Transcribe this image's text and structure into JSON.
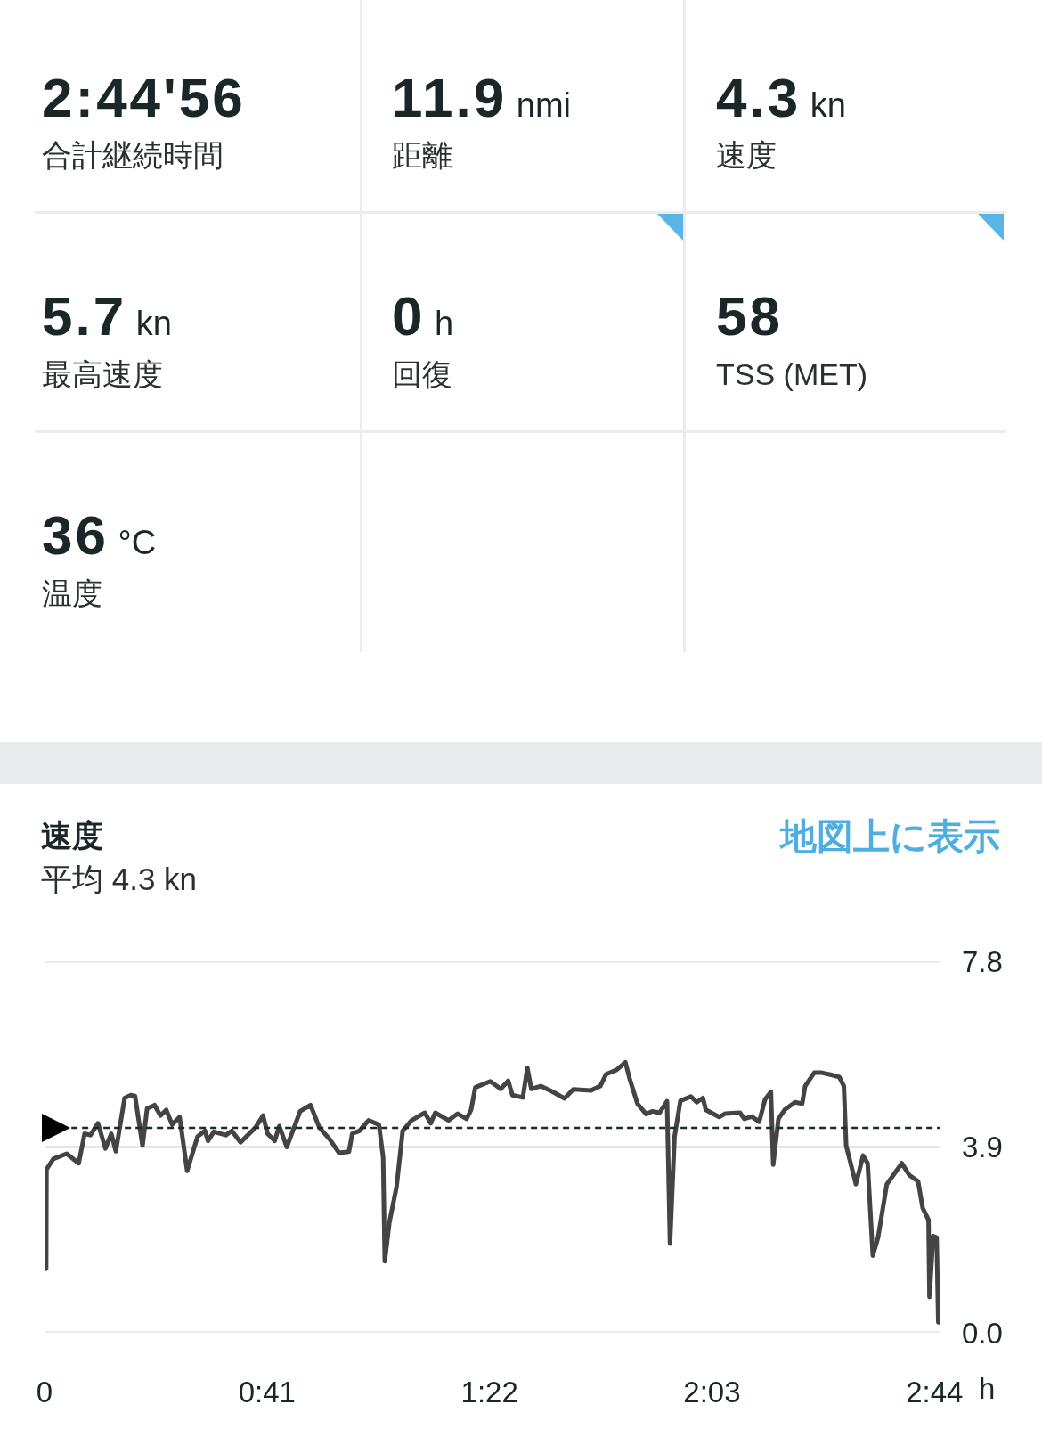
{
  "chart_data": [
    {
      "type": "other",
      "annotations": [
        "2:44'56",
        "合計継続時間",
        "11.9 nmi",
        "距離",
        "4.3 kn",
        "速度",
        "5.7 kn",
        "最高速度",
        "0 h",
        "回復",
        "58",
        "TSS (MET)",
        "36 °C",
        "温度"
      ]
    },
    {
      "type": "line",
      "title": "速度",
      "subtitle": "平均 4.3 kn",
      "annotations": [
        "地図上に表示"
      ],
      "xlabel": "h",
      "x": [
        0.005,
        0.006,
        0.027,
        0.068,
        0.105,
        0.123,
        0.141,
        0.164,
        0.187,
        0.205,
        0.219,
        0.246,
        0.265,
        0.278,
        0.301,
        0.315,
        0.338,
        0.356,
        0.374,
        0.392,
        0.415,
        0.438,
        0.47,
        0.493,
        0.502,
        0.52,
        0.557,
        0.575,
        0.602,
        0.648,
        0.671,
        0.685,
        0.707,
        0.721,
        0.744,
        0.785,
        0.817,
        0.844,
        0.876,
        0.904,
        0.935,
        0.945,
        0.967,
        0.995,
        1.027,
        1.04,
        1.045,
        1.059,
        1.081,
        1.1,
        1.127,
        1.168,
        1.186,
        1.2,
        1.241,
        1.269,
        1.296,
        1.31,
        1.323,
        1.369,
        1.401,
        1.424,
        1.437,
        1.469,
        1.483,
        1.495,
        1.524,
        1.561,
        1.597,
        1.624,
        1.679,
        1.707,
        1.725,
        1.757,
        1.784,
        1.798,
        1.821,
        1.848,
        1.866,
        1.889,
        1.912,
        1.921,
        1.935,
        1.953,
        1.985,
        2.003,
        2.022,
        2.031,
        2.072,
        2.09,
        2.136,
        2.149,
        2.172,
        2.195,
        2.213,
        2.231,
        2.238,
        2.254,
        2.273,
        2.305,
        2.327,
        2.336,
        2.364,
        2.387,
        2.414,
        2.441,
        2.455,
        2.462,
        2.492,
        2.514,
        2.528,
        2.544,
        2.56,
        2.587,
        2.61,
        2.633,
        2.656,
        2.683,
        2.697,
        2.715,
        2.718,
        2.729,
        2.74,
        2.745
      ],
      "series": [
        {
          "color": "#444444",
          "values": [
            1.34,
            3.43,
            3.65,
            3.76,
            3.56,
            4.18,
            4.15,
            4.4,
            3.87,
            4.18,
            3.81,
            4.93,
            4.99,
            4.97,
            3.93,
            4.71,
            4.78,
            4.56,
            4.68,
            4.37,
            4.53,
            3.4,
            4.12,
            4.24,
            4.03,
            4.22,
            4.15,
            4.24,
            4.0,
            4.31,
            4.56,
            4.18,
            4.03,
            4.34,
            3.9,
            4.65,
            4.78,
            4.31,
            4.06,
            3.78,
            3.8,
            4.18,
            4.24,
            4.46,
            4.37,
            3.68,
            1.5,
            2.31,
            3.06,
            4.24,
            4.46,
            4.62,
            4.4,
            4.62,
            4.46,
            4.6,
            4.49,
            4.68,
            5.15,
            5.28,
            5.12,
            5.29,
            4.99,
            4.94,
            5.56,
            5.12,
            5.18,
            5.06,
            4.92,
            5.11,
            5.09,
            5.18,
            5.43,
            5.52,
            5.68,
            5.31,
            4.81,
            4.59,
            4.65,
            4.62,
            4.86,
            1.87,
            4.12,
            4.87,
            4.96,
            4.84,
            4.93,
            4.68,
            4.53,
            4.6,
            4.62,
            4.49,
            4.54,
            4.43,
            4.9,
            5.06,
            3.53,
            4.49,
            4.68,
            4.84,
            4.81,
            5.18,
            5.46,
            5.46,
            5.42,
            5.37,
            5.18,
            3.93,
            3.12,
            3.72,
            3.56,
            1.62,
            2.0,
            3.12,
            3.34,
            3.56,
            3.31,
            3.18,
            2.62,
            2.37,
            0.75,
            2.03,
            2.0,
            0.22
          ]
        }
      ],
      "xlim": [
        0,
        2.749
      ],
      "xticks": [
        0,
        {
          "value": 0.6833,
          "label": "0:41"
        },
        {
          "value": 1.3667,
          "label": "1:22"
        },
        {
          "value": 2.05,
          "label": "2:03"
        },
        {
          "value": 2.7333,
          "label": "2:44"
        }
      ],
      "ylim": [
        0,
        7.8
      ],
      "yticks": [
        {
          "value": 0,
          "label": "0.0"
        },
        3.9,
        7.8
      ],
      "ref_lines": [
        {
          "axis": "y",
          "value": 4.3,
          "color": "#1c2b2b",
          "line_style": "dashed"
        }
      ],
      "grid": "y"
    }
  ]
}
